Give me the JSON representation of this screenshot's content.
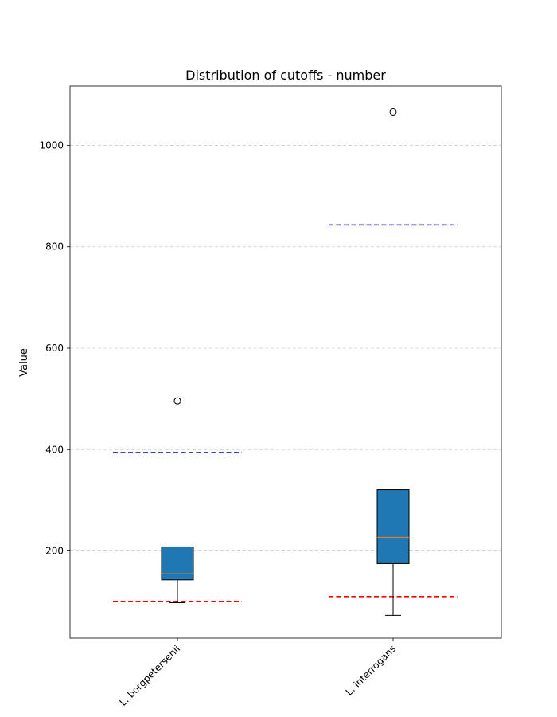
{
  "chart_data": {
    "type": "box",
    "title": "Distribution of cutoffs - number",
    "xlabel": "",
    "ylabel": "Value",
    "ylim": [
      28,
      1117
    ],
    "yticks": [
      200,
      400,
      600,
      800,
      1000
    ],
    "grid": "y-dashed",
    "box_color": "#1f77b4",
    "median_color": "#ff7f0e",
    "categories": [
      "L. borgpetersenii",
      "L. interrogans"
    ],
    "boxes": [
      {
        "category": "L. borgpetersenii",
        "whisker_low": 98,
        "q1": 143,
        "median": 155,
        "q3": 208,
        "whisker_high": 208,
        "outliers": [
          496
        ]
      },
      {
        "category": "L. interrogans",
        "whisker_low": 73,
        "q1": 175,
        "median": 227,
        "q3": 321,
        "whisker_high": 321,
        "outliers": [
          1066
        ]
      }
    ],
    "reference_lines": [
      {
        "category": "L. borgpetersenii",
        "value": 394,
        "color": "#0000cc",
        "style": "dashed"
      },
      {
        "category": "L. borgpetersenii",
        "value": 100,
        "color": "#ff0000",
        "style": "dashed"
      },
      {
        "category": "L. interrogans",
        "value": 843,
        "color": "#0000cc",
        "style": "dashed"
      },
      {
        "category": "L. interrogans",
        "value": 110,
        "color": "#ff0000",
        "style": "dashed"
      }
    ]
  }
}
